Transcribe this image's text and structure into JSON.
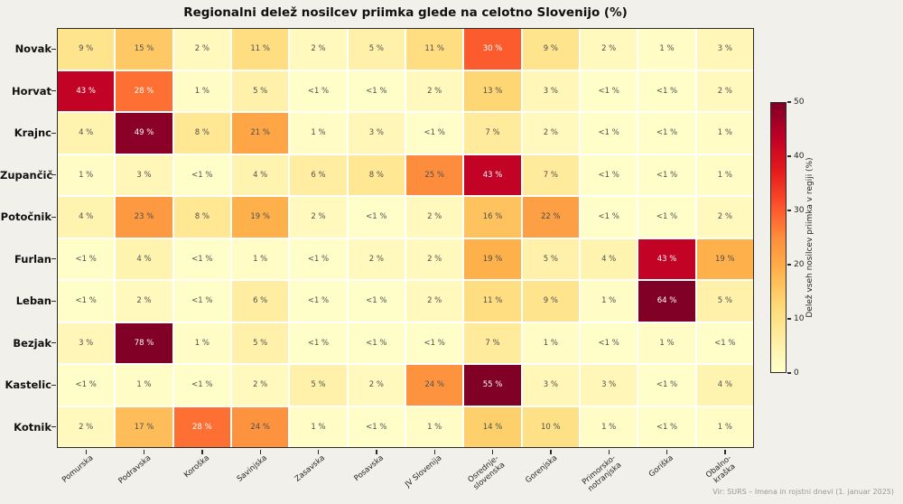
{
  "title": "Regionalni delež nosilcev priimka glede na celotno Slovenijo (%)",
  "source_note": "Vir: SURS – Imena in rojstni dnevi (1. januar 2025)",
  "colorbar": {
    "label": "Delež vseh nosilcev priimka v regiji (%)",
    "ticks": [
      50,
      40,
      30,
      20,
      10,
      0
    ]
  },
  "chart_data": {
    "type": "heatmap",
    "title": "Regionalni delež nosilcev priimka glede na celotno Slovenijo (%)",
    "rows": [
      "Novak",
      "Horvat",
      "Krajnc",
      "Zupančič",
      "Potočnik",
      "Furlan",
      "Leban",
      "Bezjak",
      "Kastelic",
      "Kotnik"
    ],
    "columns": [
      "Pomurska",
      "Podravska",
      "Koroška",
      "Savinjska",
      "Zasavska",
      "Posavska",
      "JV Slovenija",
      "Osrednje-\nslovenska",
      "Gorenjska",
      "Primorsko-\nnotranjska",
      "Goriška",
      "Obalno-\nkraška"
    ],
    "values": [
      [
        "9",
        "15",
        "2",
        "11",
        "2",
        "5",
        "11",
        "30",
        "9",
        "2",
        "1",
        "3"
      ],
      [
        "43",
        "28",
        "1",
        "5",
        "<1",
        "<1",
        "2",
        "13",
        "3",
        "<1",
        "<1",
        "2"
      ],
      [
        "4",
        "49",
        "8",
        "21",
        "1",
        "3",
        "<1",
        "7",
        "2",
        "<1",
        "<1",
        "1"
      ],
      [
        "1",
        "3",
        "<1",
        "4",
        "6",
        "8",
        "25",
        "43",
        "7",
        "<1",
        "<1",
        "1"
      ],
      [
        "4",
        "23",
        "8",
        "19",
        "2",
        "<1",
        "2",
        "16",
        "22",
        "<1",
        "<1",
        "2"
      ],
      [
        "<1",
        "4",
        "<1",
        "1",
        "<1",
        "2",
        "2",
        "19",
        "5",
        "4",
        "43",
        "19"
      ],
      [
        "<1",
        "2",
        "<1",
        "6",
        "<1",
        "<1",
        "2",
        "11",
        "9",
        "1",
        "64",
        "5"
      ],
      [
        "3",
        "78",
        "1",
        "5",
        "<1",
        "<1",
        "<1",
        "7",
        "1",
        "<1",
        "1",
        "<1"
      ],
      [
        "<1",
        "1",
        "<1",
        "2",
        "5",
        "2",
        "24",
        "55",
        "3",
        "3",
        "<1",
        "4"
      ],
      [
        "2",
        "17",
        "28",
        "24",
        "1",
        "<1",
        "1",
        "14",
        "10",
        "1",
        "<1",
        "1"
      ]
    ],
    "unit": "%",
    "vmin": 0,
    "vmax": 50,
    "colormap": {
      "name": "YlOrRd",
      "stops": [
        "#ffffcc",
        "#ffeda0",
        "#fed976",
        "#feb24c",
        "#fd8d3c",
        "#fc4e2a",
        "#e31a1c",
        "#bd0026",
        "#800026"
      ]
    },
    "annotation": {
      "color_dark": "#4f4f4f",
      "color_light": "#ffffff",
      "white_threshold": 25
    },
    "legend_position": "right"
  }
}
